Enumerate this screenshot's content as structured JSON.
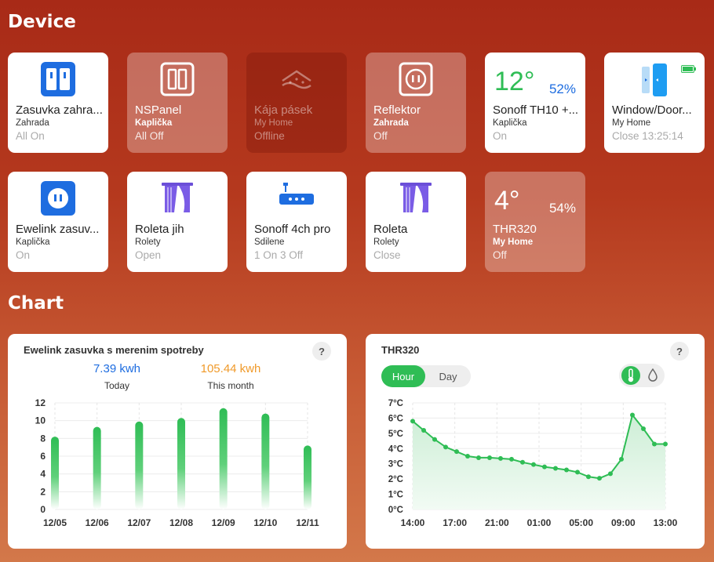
{
  "sections": {
    "device": "Device",
    "chart": "Chart"
  },
  "devices": [
    {
      "name": "Zasuvka zahra...",
      "room": "Zahrada",
      "status": "All On"
    },
    {
      "name": "NSPanel",
      "room": "Kaplička",
      "status": "All Off"
    },
    {
      "name": "Kája pásek",
      "room": "My Home",
      "status": "Offline"
    },
    {
      "name": "Reflektor",
      "room": "Zahrada",
      "status": "Off"
    },
    {
      "name": "Sonoff TH10 +...",
      "room": "Kaplička",
      "status": "On",
      "temp": "12°",
      "humidity": "52%"
    },
    {
      "name": "Window/Door...",
      "room": "My Home",
      "status": "Close 13:25:14"
    },
    {
      "name": "Ewelink zasuv...",
      "room": "Kaplička",
      "status": "On"
    },
    {
      "name": "Roleta jih",
      "room": "Rolety",
      "status": "Open"
    },
    {
      "name": "Sonoff 4ch pro",
      "room": "Sdilene",
      "status": "1 On 3 Off"
    },
    {
      "name": "Roleta",
      "room": "Rolety",
      "status": "Close"
    },
    {
      "name": "THR320",
      "room": "My Home",
      "status": "Off",
      "temp": "4°",
      "humidity": "54%"
    }
  ],
  "colors": {
    "accent_green": "#2fbd55",
    "blue": "#1e6de0",
    "orange": "#f09a2a"
  },
  "energy_panel": {
    "title": "Ewelink zasuvka s merenim spotreby",
    "help": "?",
    "today_value": "7.39 kwh",
    "today_label": "Today",
    "month_value": "105.44 kwh",
    "month_label": "This month"
  },
  "thr_panel": {
    "title": "THR320",
    "help": "?",
    "tab_hour": "Hour",
    "tab_day": "Day"
  },
  "chart_data": [
    {
      "type": "bar",
      "categories": [
        "12/05",
        "12/06",
        "12/07",
        "12/08",
        "12/09",
        "12/10",
        "12/11"
      ],
      "values": [
        8.2,
        9.3,
        9.9,
        10.3,
        11.4,
        10.8,
        7.2
      ],
      "ylim": [
        0,
        12
      ],
      "yticks": [
        "0",
        "2",
        "4",
        "6",
        "8",
        "10",
        "12"
      ],
      "grid": true
    },
    {
      "type": "area",
      "x_labels": [
        "14:00",
        "17:00",
        "21:00",
        "01:00",
        "05:00",
        "09:00",
        "13:00"
      ],
      "yticks": [
        "0°C",
        "1°C",
        "2°C",
        "3°C",
        "4°C",
        "5°C",
        "6°C",
        "7°C"
      ],
      "ylim": [
        0,
        7
      ],
      "x": [
        0,
        1,
        2,
        3,
        4,
        5,
        6,
        7,
        8,
        9,
        10,
        11,
        12,
        13,
        14,
        15,
        16,
        17,
        18,
        19,
        20,
        21,
        22,
        23
      ],
      "values": [
        5.8,
        5.2,
        4.6,
        4.1,
        3.8,
        3.5,
        3.4,
        3.4,
        3.35,
        3.3,
        3.1,
        2.95,
        2.8,
        2.7,
        2.6,
        2.45,
        2.15,
        2.05,
        2.35,
        3.3,
        6.2,
        5.3,
        4.3,
        4.3
      ],
      "grid": true
    }
  ]
}
